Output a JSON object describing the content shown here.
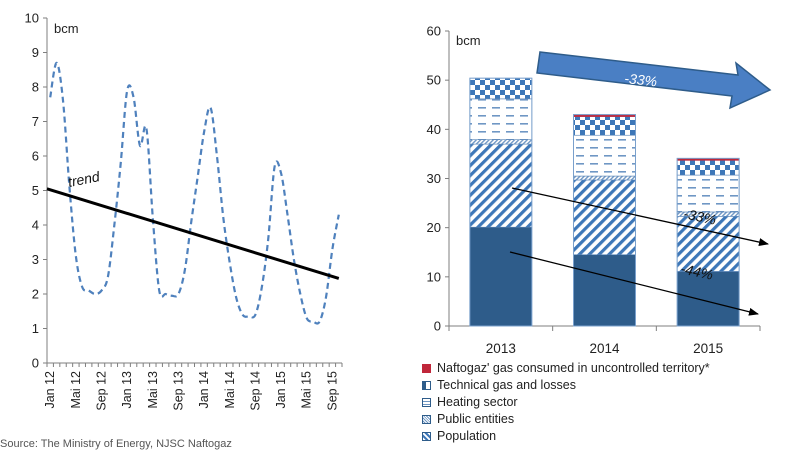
{
  "chart_data": [
    {
      "type": "line",
      "unit_label": "bcm",
      "ylim": [
        0,
        10
      ],
      "yticks": [
        0,
        1,
        2,
        3,
        4,
        5,
        6,
        7,
        8,
        9,
        10
      ],
      "x_tick_labels": [
        "Jan 12",
        "Mai 12",
        "Sep 12",
        "Jan 13",
        "Mai 13",
        "Sep 13",
        "Jan 14",
        "Mai 14",
        "Sep 14",
        "Jan 15",
        "Mai 15",
        "Sep 15"
      ],
      "series": [
        {
          "values": [
            7.7,
            8.7,
            7.6,
            5.1,
            3.1,
            2.2,
            2.1,
            2.0,
            2.1,
            2.5,
            4.0,
            5.8,
            7.9,
            7.7,
            6.3,
            6.8,
            4.2,
            2.1,
            2.0,
            1.95,
            2.0,
            2.7,
            4.1,
            5.4,
            6.7,
            7.4,
            6.0,
            4.2,
            2.9,
            1.9,
            1.4,
            1.35,
            1.4,
            2.2,
            3.6,
            5.7,
            5.5,
            4.3,
            3.0,
            2.0,
            1.3,
            1.2,
            1.2,
            1.9,
            3.3,
            4.3
          ],
          "style": "dashed",
          "color": "#4f81bd"
        },
        {
          "name": "trend",
          "values": [
            5.05,
            2.45
          ],
          "style": "solid",
          "color": "#000000"
        }
      ]
    },
    {
      "type": "stacked-bar",
      "unit_label": "bcm",
      "ylim": [
        0,
        60
      ],
      "yticks": [
        0,
        10,
        20,
        30,
        40,
        50,
        60
      ],
      "categories": [
        "2013",
        "2014",
        "2015"
      ],
      "series": [
        {
          "name": "Population",
          "values": [
            20.1,
            14.5,
            11.1
          ],
          "color": "#2e5c8a"
        },
        {
          "name": "Public entities",
          "values": [
            16.9,
            15.2,
            11.2
          ],
          "color": "#3d77b8"
        },
        {
          "name": "Heating sector",
          "values": [
            0.9,
            0.8,
            0.9
          ],
          "color": "#9fbad8"
        },
        {
          "name": "Technical gas and losses",
          "values": [
            8.3,
            8.3,
            7.5
          ],
          "color": "#6f97c4"
        },
        {
          "name": "Naftogaz' gas consumed in uncontrolled territory*",
          "values": [
            4.2,
            3.8,
            3.0
          ],
          "color": "#3d77b8"
        },
        {
          "name": "",
          "values": [
            0.0,
            0.4,
            0.4
          ],
          "color": "#c0263a"
        }
      ],
      "annotations": {
        "top_arrow_label": "-33%",
        "upper_arrow_label": "-33%",
        "lower_arrow_label": "-44%"
      },
      "legend": [
        "Naftogaz' gas consumed in uncontrolled territory*",
        "Technical gas and losses",
        "Heating sector",
        "Public entities",
        "Population"
      ]
    }
  ],
  "colors": {
    "dashed_line": "#4f81bd",
    "dark_blue": "#2e5c8a",
    "mid_blue": "#3d77b8",
    "red": "#c0263a",
    "arrow_fill": "#4a7fc4"
  },
  "source_note": "Source: The Ministry of Energy, NJSC Naftogaz"
}
